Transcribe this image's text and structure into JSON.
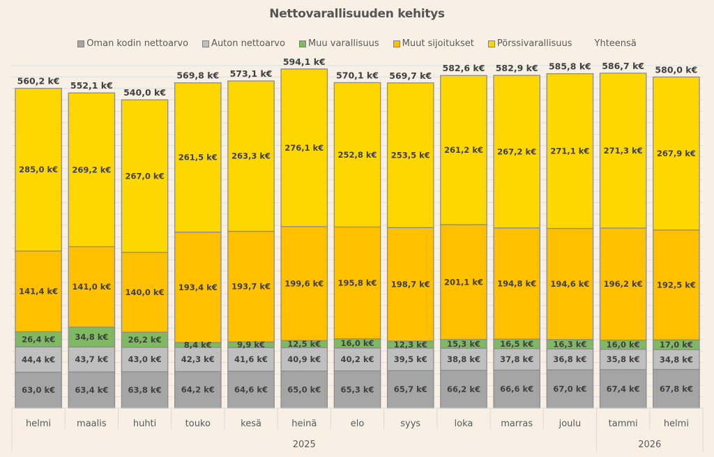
{
  "chart_data": {
    "type": "bar",
    "stacked": true,
    "title": "Nettovarallisuuden kehitys",
    "xlabel": "",
    "ylabel": "",
    "ylim": [
      0,
      600
    ],
    "grid": true,
    "grid_step": 20,
    "legend_position": "top",
    "value_suffix": " k€",
    "categories": [
      "helmi",
      "maalis",
      "huhti",
      "touko",
      "kesä",
      "heinä",
      "elo",
      "syys",
      "loka",
      "marras",
      "joulu",
      "tammi",
      "helmi"
    ],
    "category_groups": [
      {
        "label": "2025",
        "count": 11
      },
      {
        "label": "2026",
        "count": 2
      }
    ],
    "series": [
      {
        "name": "Oman kodin nettoarvo",
        "color": "#a5a5a5",
        "values": [
          63.0,
          63.4,
          63.8,
          64.2,
          64.6,
          65.0,
          65.3,
          65.7,
          66.2,
          66.6,
          67.0,
          67.4,
          67.8
        ]
      },
      {
        "name": "Auton nettoarvo",
        "color": "#bfbfbf",
        "values": [
          44.4,
          43.7,
          43.0,
          42.3,
          41.6,
          40.9,
          40.2,
          39.5,
          38.8,
          37.8,
          36.8,
          35.8,
          34.8
        ]
      },
      {
        "name": "Muu varallisuus",
        "color": "#7fba62",
        "values": [
          26.4,
          34.8,
          26.2,
          8.4,
          9.9,
          12.5,
          16.0,
          12.3,
          15.3,
          16.5,
          16.3,
          16.0,
          17.0
        ]
      },
      {
        "name": "Muut sijoitukset",
        "color": "#ffc000",
        "values": [
          141.4,
          141.0,
          140.0,
          193.4,
          193.7,
          199.6,
          195.8,
          198.7,
          201.1,
          194.8,
          194.6,
          196.2,
          192.5
        ]
      },
      {
        "name": "Pörssivarallisuus",
        "color": "#ffd700",
        "values": [
          285.0,
          269.2,
          267.0,
          261.5,
          263.3,
          276.1,
          252.8,
          253.5,
          261.2,
          267.2,
          271.1,
          271.3,
          267.9
        ]
      }
    ],
    "totals": {
      "name": "Yhteensä",
      "values": [
        560.2,
        552.1,
        540.0,
        569.8,
        573.1,
        594.1,
        570.1,
        569.7,
        582.6,
        582.9,
        585.8,
        586.7,
        580.0
      ]
    }
  }
}
